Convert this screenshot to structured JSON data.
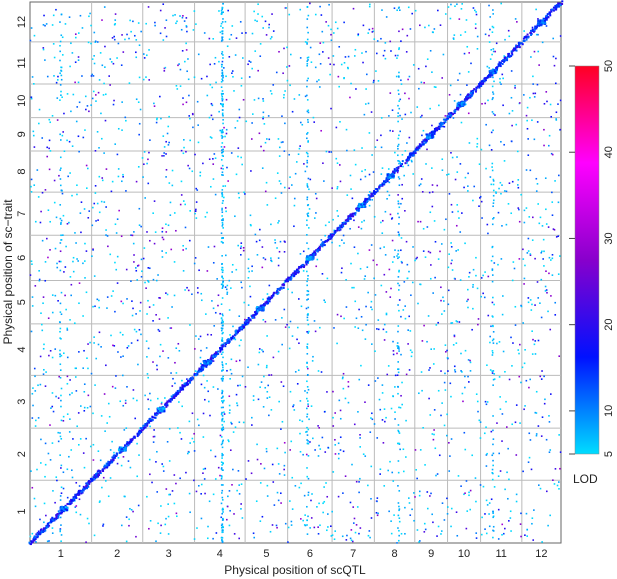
{
  "chart_data": {
    "type": "scatter",
    "title": "",
    "xlabel": "Physical position of scQTL",
    "ylabel": "Physical position of sc−trait",
    "chromosomes": [
      "1",
      "2",
      "3",
      "4",
      "5",
      "6",
      "7",
      "8",
      "9",
      "10",
      "11",
      "12"
    ],
    "chromosome_lengths_mb": [
      43.3,
      35.9,
      36.4,
      35.5,
      29.9,
      31.2,
      29.7,
      28.4,
      23.0,
      23.2,
      29.0,
      27.5
    ],
    "grid": true,
    "colorbar": {
      "label": "LOD",
      "min": 5,
      "max": 50,
      "ticks": [
        5,
        10,
        20,
        30,
        40,
        50
      ],
      "colors": [
        "#00ddff",
        "#0011ff",
        "#8800cc",
        "#ff00ff",
        "#ff0022"
      ]
    },
    "point_color_default": "#22bbee",
    "diagonal_color": "#1166dd",
    "background_points_note_free": true
  }
}
